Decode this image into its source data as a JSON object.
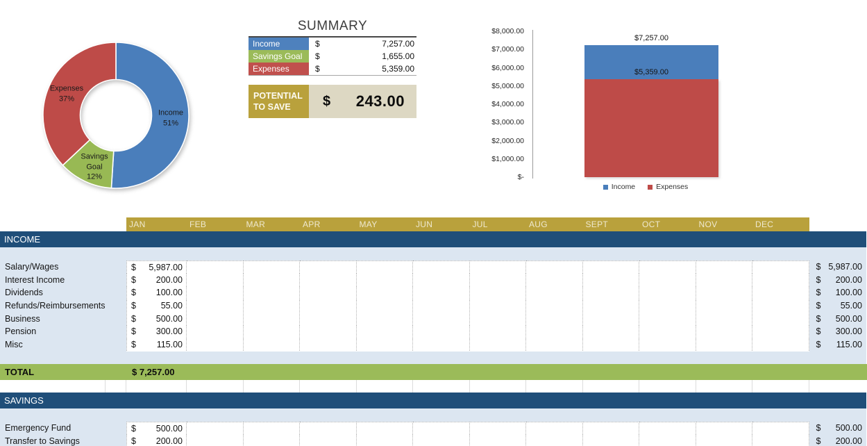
{
  "summary": {
    "title": "SUMMARY",
    "rows": [
      {
        "label": "Income",
        "currency": "$",
        "amount": "7,257.00",
        "color": "#4e81bd"
      },
      {
        "label": "Savings Goal",
        "currency": "$",
        "amount": "1,655.00",
        "color": "#9bbb59"
      },
      {
        "label": "Expenses",
        "currency": "$",
        "amount": "5,359.00",
        "color": "#c0504d"
      }
    ],
    "potential": {
      "label_line1": "POTENTIAL",
      "label_line2": "TO SAVE",
      "currency": "$",
      "amount": "243.00"
    }
  },
  "chart_data": [
    {
      "type": "pie",
      "subtype": "donut",
      "labels": [
        "Income",
        "Savings Goal",
        "Expenses"
      ],
      "values": [
        51,
        12,
        37
      ],
      "display_labels": [
        [
          "Income",
          "51%"
        ],
        [
          "Savings",
          "Goal",
          "12%"
        ],
        [
          "Expenses",
          "37%"
        ]
      ],
      "colors": [
        "#4a7ebb",
        "#98b954",
        "#be4b48"
      ],
      "start_angle": "top",
      "direction": "clockwise",
      "legend": "none"
    },
    {
      "type": "bar",
      "stacked": true,
      "categories": [
        ""
      ],
      "series": [
        {
          "name": "Income",
          "values": [
            7257
          ],
          "color": "#4a7ebb"
        },
        {
          "name": "Expenses",
          "values": [
            5359
          ],
          "color": "#be4b48"
        }
      ],
      "data_labels": [
        "$7,257.00",
        "$5,359.00"
      ],
      "ylim": [
        0,
        8000
      ],
      "ytick_labels": [
        "$8,000.00",
        "$7,000.00",
        "$6,000.00",
        "$5,000.00",
        "$4,000.00",
        "$3,000.00",
        "$2,000.00",
        "$1,000.00",
        "$-"
      ],
      "legend": [
        "Income",
        "Expenses"
      ],
      "legend_position": "bottom",
      "grid": false
    }
  ],
  "table": {
    "currency": "$",
    "months": [
      "JAN",
      "FEB",
      "MAR",
      "APR",
      "MAY",
      "JUN",
      "JUL",
      "AUG",
      "SEPT",
      "OCT",
      "NOV",
      "DEC"
    ],
    "sections": [
      {
        "header": "INCOME",
        "rows": [
          {
            "label": "Salary/Wages",
            "jan": "5,987.00",
            "year": "5,987.00"
          },
          {
            "label": "Interest Income",
            "jan": "200.00",
            "year": "200.00"
          },
          {
            "label": "Dividends",
            "jan": "100.00",
            "year": "100.00"
          },
          {
            "label": "Refunds/Reimbursements",
            "jan": "55.00",
            "year": "55.00"
          },
          {
            "label": "Business",
            "jan": "500.00",
            "year": "500.00"
          },
          {
            "label": "Pension",
            "jan": "300.00",
            "year": "300.00"
          },
          {
            "label": "Misc",
            "jan": "115.00",
            "year": "115.00"
          }
        ],
        "total": {
          "label": "TOTAL",
          "jan_display": "$ 7,257.00"
        }
      },
      {
        "header": "SAVINGS",
        "rows": [
          {
            "label": "Emergency Fund",
            "jan": "500.00",
            "year": "500.00"
          },
          {
            "label": "Transfer to Savings",
            "jan": "200.00",
            "year": "200.00"
          }
        ]
      }
    ]
  },
  "colors": {
    "band_navy": "#1f4e79",
    "band_gold": "#b9a13c",
    "band_green": "#9bbb59",
    "row_lightblue": "#dce6f1",
    "potential_beige": "#ddd8c3"
  }
}
